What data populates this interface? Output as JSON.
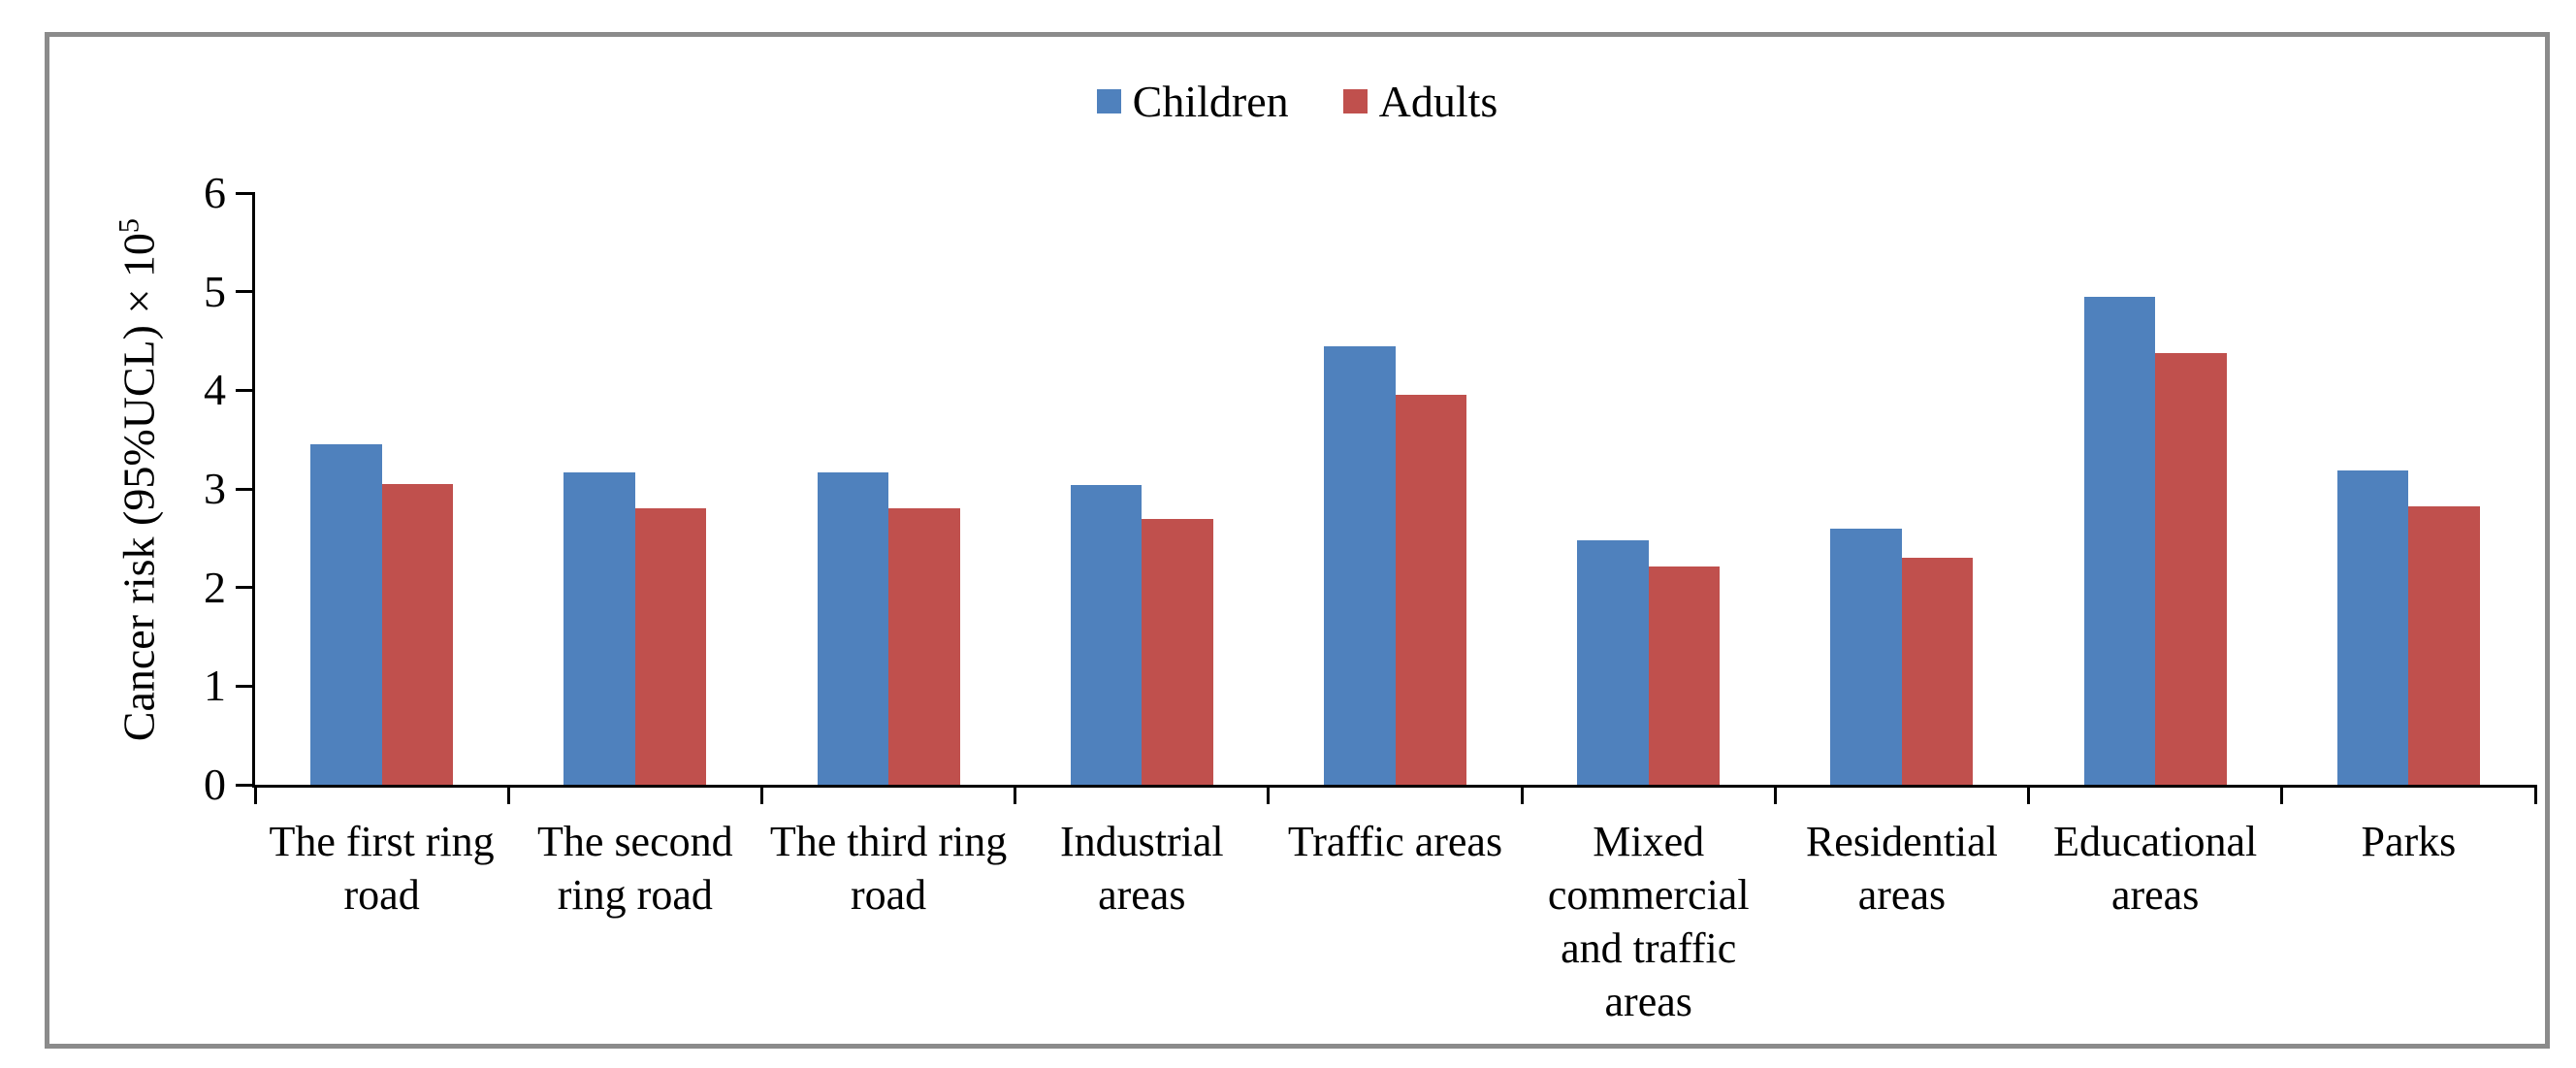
{
  "chart_data": {
    "type": "bar",
    "title": "",
    "categories": [
      "The first ring road",
      "The second ring road",
      "The third ring road",
      "Industrial areas",
      "Traffic areas",
      "Mixed commercial and traffic areas",
      "Residential areas",
      "Educational areas",
      "Parks"
    ],
    "series": [
      {
        "name": "Children",
        "color": "#4F81BD",
        "values": [
          3.45,
          3.17,
          3.17,
          3.04,
          4.45,
          2.48,
          2.6,
          4.95,
          3.19
        ]
      },
      {
        "name": "Adults",
        "color": "#C0504D",
        "values": [
          3.05,
          2.8,
          2.8,
          2.7,
          3.95,
          2.21,
          2.3,
          4.38,
          2.82
        ]
      }
    ],
    "ylabel_main": "Cancer risk (95%UCL) × 10",
    "ylabel_superscript": "5",
    "xlabel": "",
    "ylim": [
      0,
      6
    ],
    "y_ticks": [
      0,
      1,
      2,
      3,
      4,
      5,
      6
    ],
    "legend_position": "top-center",
    "grid": false,
    "frame_border_color": "#8b8b8b",
    "axis_color": "#000000"
  }
}
